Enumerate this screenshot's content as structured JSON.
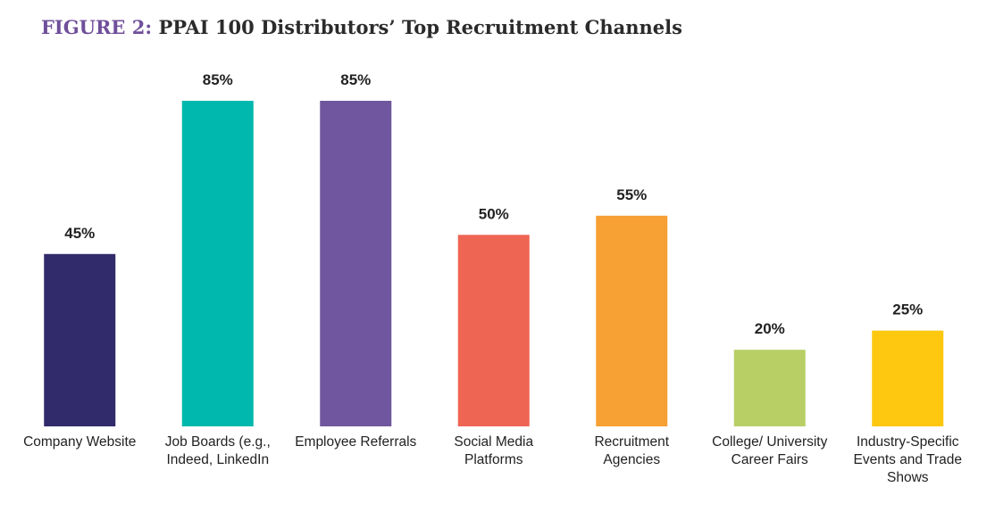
{
  "chart_data": {
    "type": "bar",
    "title_label": "FIGURE 2:",
    "title": "PPAI 100 Distributors’ Top Recruitment Channels",
    "categories": [
      "Company Website",
      "Job Boards (e.g., Indeed, LinkedIn",
      "Employee Referrals",
      "Social Media Platforms",
      "Recruitment Agencies",
      "College/ University Career Fairs",
      "Industry-Specific Events and Trade Shows"
    ],
    "values": [
      45,
      85,
      85,
      50,
      55,
      20,
      25
    ],
    "value_labels": [
      "45%",
      "85%",
      "85%",
      "50%",
      "55%",
      "20%",
      "25%"
    ],
    "colors": [
      "#312a6b",
      "#00b8ae",
      "#70569e",
      "#ef6553",
      "#f7a033",
      "#b8cf66",
      "#fec710"
    ]
  }
}
